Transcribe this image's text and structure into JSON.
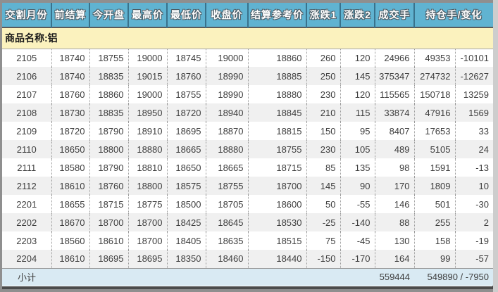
{
  "table": {
    "columns": [
      "交割月份",
      "前结算",
      "今开盘",
      "最高价",
      "最低价",
      "收盘价",
      "结算参考价",
      "涨跌1",
      "涨跌2",
      "成交手",
      "持仓手/变化"
    ],
    "product_label": "商品名称:铝",
    "rows": [
      [
        "2105",
        "18740",
        "18755",
        "19000",
        "18745",
        "19000",
        "18860",
        "260",
        "120",
        "24966",
        "49353",
        "-10101"
      ],
      [
        "2106",
        "18740",
        "18835",
        "19015",
        "18760",
        "18990",
        "18885",
        "250",
        "145",
        "375347",
        "274732",
        "-12627"
      ],
      [
        "2107",
        "18760",
        "18860",
        "19000",
        "18755",
        "18990",
        "18880",
        "230",
        "120",
        "115565",
        "150718",
        "13259"
      ],
      [
        "2108",
        "18730",
        "18835",
        "18950",
        "18720",
        "18940",
        "18845",
        "210",
        "115",
        "33874",
        "47916",
        "1569"
      ],
      [
        "2109",
        "18720",
        "18790",
        "18910",
        "18695",
        "18870",
        "18815",
        "150",
        "95",
        "8407",
        "17653",
        "33"
      ],
      [
        "2110",
        "18650",
        "18800",
        "18880",
        "18665",
        "18880",
        "18755",
        "230",
        "105",
        "489",
        "5105",
        "24"
      ],
      [
        "2111",
        "18580",
        "18790",
        "18810",
        "18650",
        "18665",
        "18715",
        "85",
        "135",
        "98",
        "1591",
        "-13"
      ],
      [
        "2112",
        "18610",
        "18760",
        "18800",
        "18575",
        "18755",
        "18700",
        "145",
        "90",
        "170",
        "1809",
        "10"
      ],
      [
        "2201",
        "18655",
        "18715",
        "18775",
        "18500",
        "18705",
        "18600",
        "50",
        "-55",
        "146",
        "501",
        "-30"
      ],
      [
        "2202",
        "18670",
        "18700",
        "18700",
        "18425",
        "18645",
        "18530",
        "-25",
        "-140",
        "88",
        "255",
        "2"
      ],
      [
        "2203",
        "18560",
        "18610",
        "18700",
        "18405",
        "18635",
        "18515",
        "75",
        "-45",
        "130",
        "158",
        "-19"
      ],
      [
        "2204",
        "18610",
        "18695",
        "18695",
        "18350",
        "18460",
        "18440",
        "-150",
        "-170",
        "164",
        "99",
        "-57"
      ]
    ],
    "subtotal": {
      "label": "小计",
      "volume": "559444",
      "oi_and_change": "549890 / -7950"
    }
  },
  "colors": {
    "header_bg": "#60b3d1",
    "product_bg": "#fbf2be",
    "alt_bg": "#f0f0f0",
    "subtotal_bg": "#d9eaf3"
  }
}
